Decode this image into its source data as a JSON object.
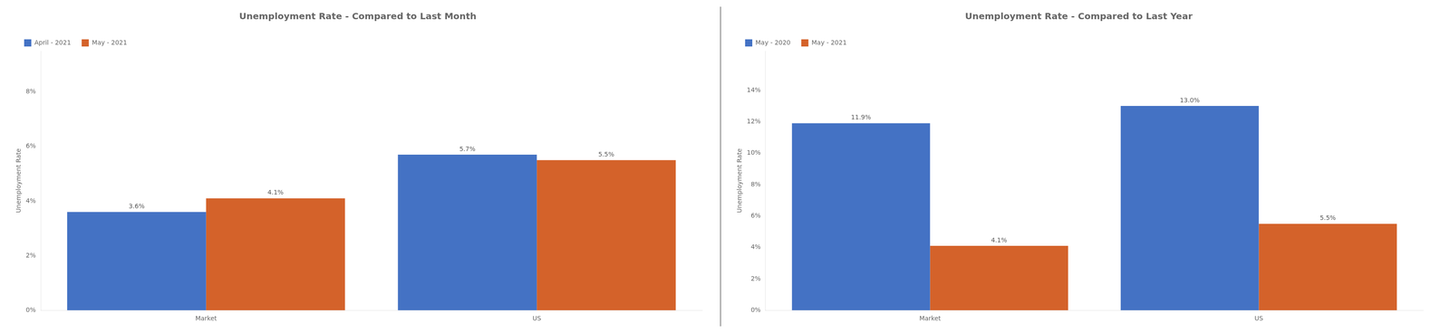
{
  "chart_data": [
    {
      "type": "bar",
      "title": "Unemployment Rate - Compared to Last Month",
      "ylabel": "Unemployment Rate",
      "categories": [
        "Market",
        "US"
      ],
      "series": [
        {
          "name": "April - 2021",
          "color": "#4472C4",
          "values": [
            3.6,
            5.7
          ],
          "value_labels": [
            "3.6%",
            "5.7%"
          ]
        },
        {
          "name": "May - 2021",
          "color": "#D4622A",
          "values": [
            4.1,
            5.5
          ],
          "value_labels": [
            "4.1%",
            "5.5%"
          ]
        }
      ],
      "ylim": [
        0,
        9.5
      ],
      "yticks": [
        {
          "value": 0,
          "label": "0%"
        },
        {
          "value": 2,
          "label": "2%"
        },
        {
          "value": 4,
          "label": "4%"
        },
        {
          "value": 6,
          "label": "6%"
        },
        {
          "value": 8,
          "label": "8%"
        }
      ],
      "grid": false,
      "legend": "upper left",
      "data_labels": true
    },
    {
      "type": "bar",
      "title": "Unemployment Rate - Compared to Last Year",
      "ylabel": "Unemployment Rate",
      "categories": [
        "Market",
        "US"
      ],
      "series": [
        {
          "name": "May - 2020",
          "color": "#4472C4",
          "values": [
            11.9,
            13.0
          ],
          "value_labels": [
            "11.9%",
            "13.0%"
          ]
        },
        {
          "name": "May - 2021",
          "color": "#D4622A",
          "values": [
            4.1,
            5.5
          ],
          "value_labels": [
            "4.1%",
            "5.5%"
          ]
        }
      ],
      "ylim": [
        0,
        16.5
      ],
      "yticks": [
        {
          "value": 0,
          "label": "0%"
        },
        {
          "value": 2,
          "label": "2%"
        },
        {
          "value": 4,
          "label": "4%"
        },
        {
          "value": 6,
          "label": "6%"
        },
        {
          "value": 8,
          "label": "8%"
        },
        {
          "value": 10,
          "label": "10%"
        },
        {
          "value": 12,
          "label": "12%"
        },
        {
          "value": 14,
          "label": "14%"
        }
      ],
      "grid": false,
      "legend": "upper left",
      "data_labels": true
    }
  ]
}
